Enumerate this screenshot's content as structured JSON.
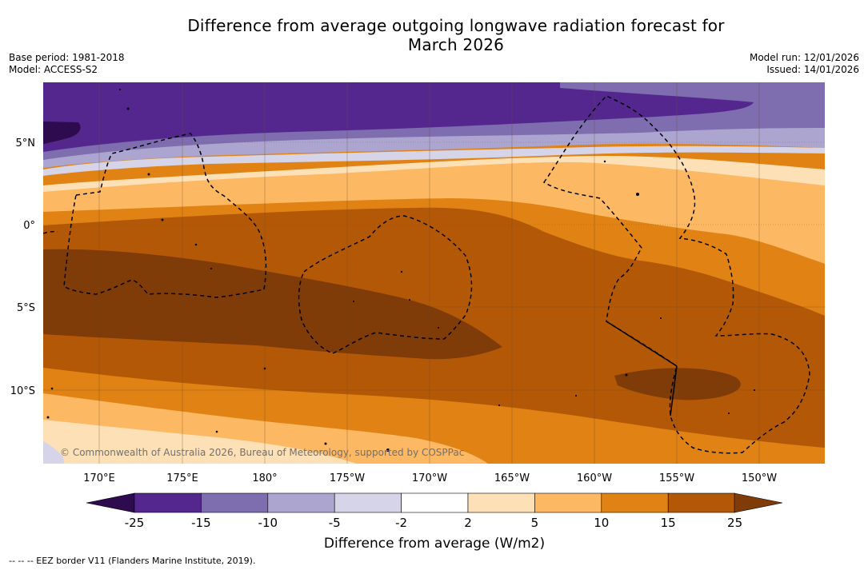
{
  "title_line1": "Difference from average outgoing longwave radiation forecast for",
  "title_line2": "March 2026",
  "base_period": "Base period: 1981-2018",
  "model": "Model: ACCESS-S2",
  "model_run": "Model run: 12/01/2026",
  "issued": "Issued: 14/01/2026",
  "lat_labels": [
    "5°N",
    "0°",
    "5°S",
    "10°S"
  ],
  "lon_labels": [
    "170°E",
    "175°E",
    "180°",
    "175°W",
    "170°W",
    "165°W",
    "160°W",
    "155°W",
    "150°W"
  ],
  "copyright": "© Commonwealth of Australia 2026, Bureau of Meteorology, supported by COSPPac",
  "colorbar": {
    "ticks": [
      "-25",
      "-15",
      "-10",
      "-5",
      "-2",
      "2",
      "5",
      "10",
      "15",
      "25"
    ],
    "colors": [
      "#2e0a4f",
      "#54278f",
      "#7e6daf",
      "#aba5d0",
      "#d5d4e8",
      "#ffffff",
      "#fee0b6",
      "#fdb863",
      "#e08214",
      "#b35806",
      "#7f3b08"
    ],
    "label": "Difference from average (W/m2)"
  },
  "footer": "--  --  -- EEZ border V11 (Flanders Marine Institute, 2019)."
}
